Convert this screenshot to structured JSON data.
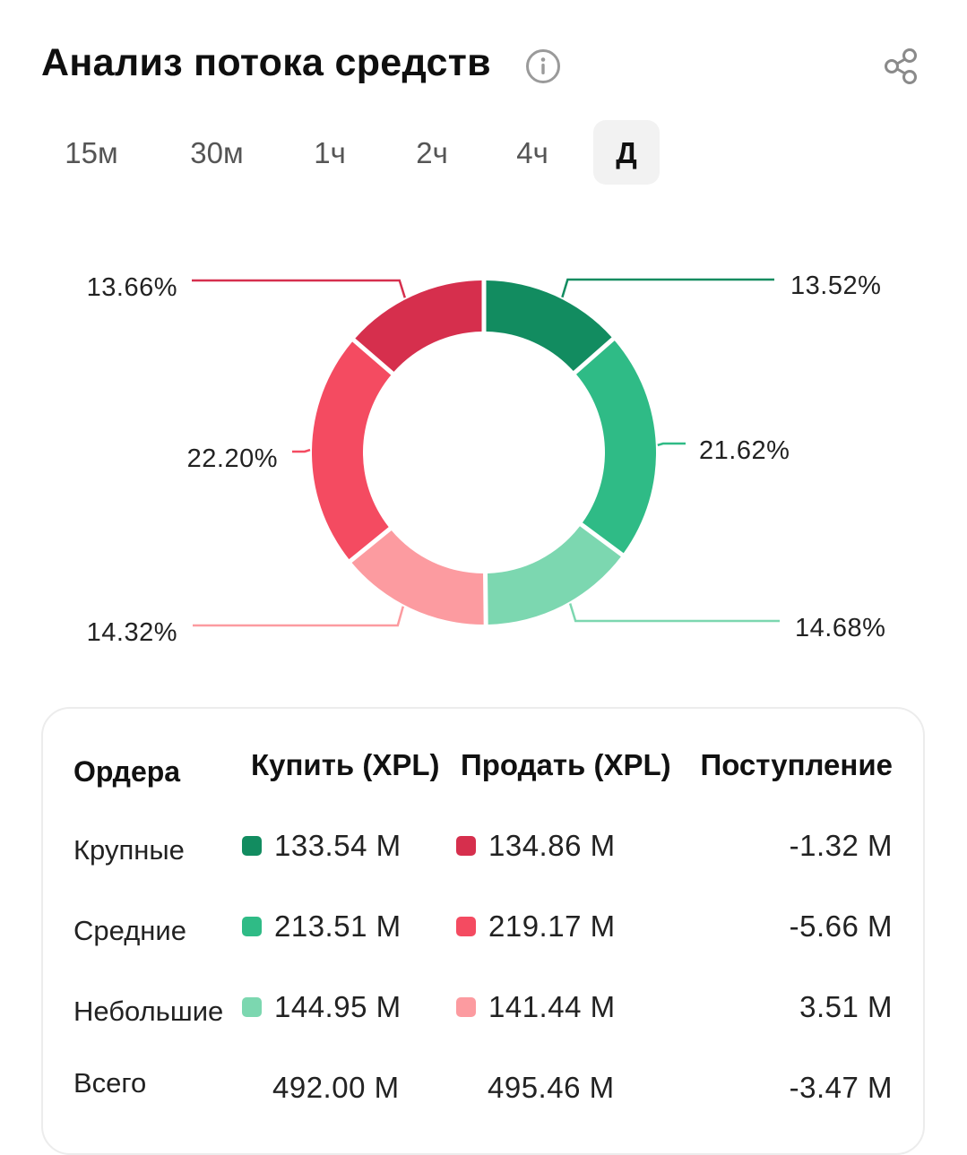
{
  "header": {
    "title": "Анализ потока средств",
    "info_icon": "info-icon",
    "share_icon": "share-icon"
  },
  "tabs": [
    {
      "label": "15м",
      "active": false
    },
    {
      "label": "30м",
      "active": false
    },
    {
      "label": "1ч",
      "active": false
    },
    {
      "label": "2ч",
      "active": false
    },
    {
      "label": "4ч",
      "active": false
    },
    {
      "label": "Д",
      "active": true
    }
  ],
  "chart_data": {
    "type": "pie",
    "donut": true,
    "slices": [
      {
        "label": "13.52%",
        "value": 13.52,
        "color": "#128c60"
      },
      {
        "label": "21.62%",
        "value": 21.62,
        "color": "#2fbb86"
      },
      {
        "label": "14.68%",
        "value": 14.68,
        "color": "#7cd7b0"
      },
      {
        "label": "14.32%",
        "value": 14.32,
        "color": "#fc9ba0"
      },
      {
        "label": "22.20%",
        "value": 22.2,
        "color": "#f44b61"
      },
      {
        "label": "13.66%",
        "value": 13.66,
        "color": "#d62f4d"
      }
    ]
  },
  "table": {
    "headers": {
      "orders": "Ордера",
      "buy": "Купить (XPL)",
      "sell": "Продать (XPL)",
      "inflow": "Поступление"
    },
    "rows": [
      {
        "label": "Крупные",
        "buy": "133.54 M",
        "sell": "134.86 M",
        "inflow": "-1.32 M",
        "buy_color": "#128c60",
        "sell_color": "#d62f4d"
      },
      {
        "label": "Средние",
        "buy": "213.51 M",
        "sell": "219.17 M",
        "inflow": "-5.66 M",
        "buy_color": "#2fbb86",
        "sell_color": "#f44b61"
      },
      {
        "label": "Небольшие",
        "buy": "144.95 M",
        "sell": "141.44 M",
        "inflow": "3.51 M",
        "buy_color": "#7cd7b0",
        "sell_color": "#fc9ba0"
      },
      {
        "label": "Всего",
        "buy": "492.00 M",
        "sell": "495.46 M",
        "inflow": "-3.47 M"
      }
    ]
  }
}
